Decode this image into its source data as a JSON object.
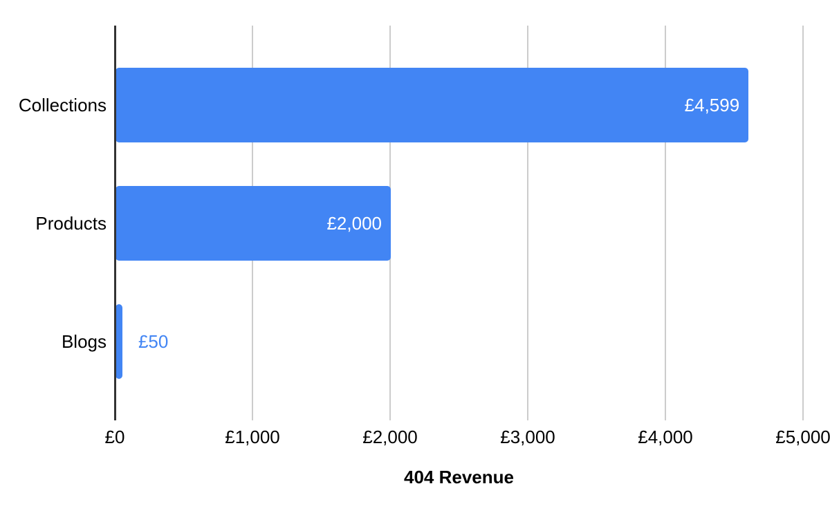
{
  "chart_data": {
    "type": "bar",
    "orientation": "horizontal",
    "title": "",
    "xlabel": "404 Revenue",
    "ylabel": "",
    "categories": [
      "Collections",
      "Products",
      "Blogs"
    ],
    "values": [
      4599,
      2000,
      50
    ],
    "value_labels": [
      "£4,599",
      "£2,000",
      "£50"
    ],
    "x_ticks": [
      {
        "value": 0,
        "label": "£0"
      },
      {
        "value": 1000,
        "label": "£1,000"
      },
      {
        "value": 2000,
        "label": "£2,000"
      },
      {
        "value": 3000,
        "label": "£3,000"
      },
      {
        "value": 4000,
        "label": "£4,000"
      },
      {
        "value": 5000,
        "label": "£5,000"
      }
    ],
    "xlim": [
      0,
      5000
    ],
    "grid": true,
    "legend": "none",
    "colors": {
      "bar": "#4285f4",
      "value_label_inside": "#ffffff",
      "value_label_outside": "#4285f4",
      "gridline": "#cccccc",
      "axis_line": "#333333",
      "text": "#000000",
      "background": "#ffffff"
    }
  }
}
